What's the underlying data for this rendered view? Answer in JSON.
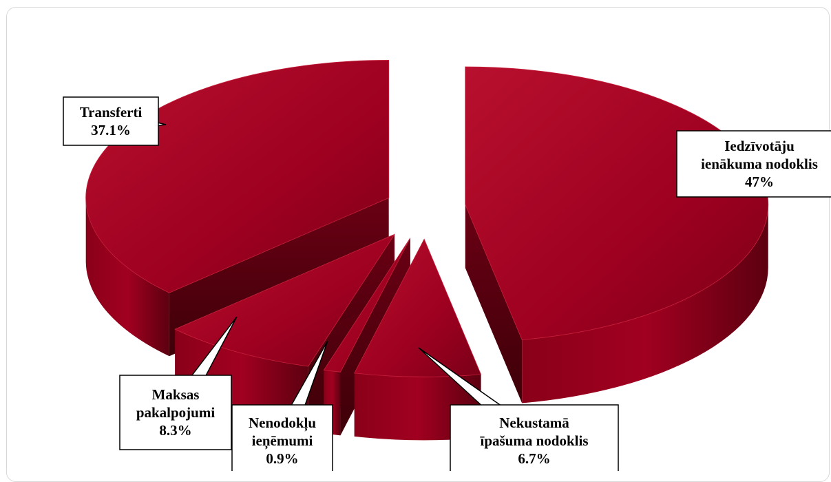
{
  "chart_data": {
    "type": "pie",
    "style": "3d-exploded",
    "title": "",
    "slices": [
      {
        "label_lines": [
          "Iedzīvotāju",
          "ienākuma nodoklis",
          "47%"
        ],
        "value": 47.0,
        "color": "#a3001e"
      },
      {
        "label_lines": [
          "Nekustamā",
          "īpašuma nodoklis",
          "6.7%"
        ],
        "value": 6.7,
        "color": "#a3001e"
      },
      {
        "label_lines": [
          "Nenodokļu",
          "ieņēmumi",
          "0.9%"
        ],
        "value": 0.9,
        "color": "#a3001e"
      },
      {
        "label_lines": [
          "Maksas",
          "pakalpojumi",
          "8.3%"
        ],
        "value": 8.3,
        "color": "#a3001e"
      },
      {
        "label_lines": [
          "Transferti",
          "37.1%"
        ],
        "value": 37.1,
        "color": "#a3001e"
      }
    ]
  }
}
